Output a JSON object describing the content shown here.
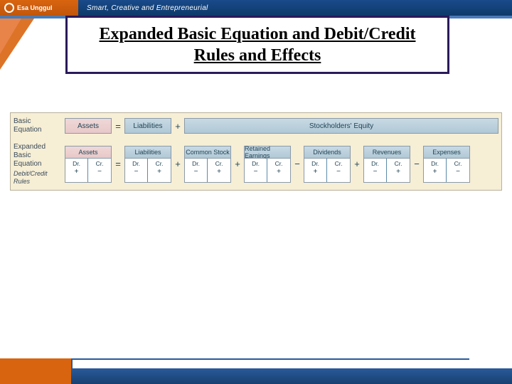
{
  "header": {
    "logo_text": "Esa Unggul",
    "tagline": "Smart, Creative and Entrepreneurial"
  },
  "title": "Expanded Basic Equation and Debit/Credit Rules and Effects",
  "colors": {
    "header_blue": "#0d3a6a",
    "header_orange": "#d9640f",
    "title_border": "#2a1a5a",
    "diagram_bg": "#f6eed5",
    "box_pink": "#e8c8c8",
    "box_blue": "#b0c8d6",
    "text": "#245"
  },
  "basic": {
    "label": "Basic Equation",
    "assets": "Assets",
    "liabilities": "Liabilities",
    "stockholders_equity": "Stockholders' Equity",
    "op1": "=",
    "op2": "+"
  },
  "expanded": {
    "label": "Expanded Basic Equation",
    "sublabel": "Debit/Credit Rules",
    "ops": [
      "=",
      "+",
      "+",
      "−",
      "+",
      "−"
    ],
    "accounts": [
      {
        "name": "Assets",
        "color": "pink",
        "dr_sign": "+",
        "cr_sign": "−"
      },
      {
        "name": "Liabilities",
        "color": "blue",
        "dr_sign": "−",
        "cr_sign": "+"
      },
      {
        "name": "Common Stock",
        "color": "blue",
        "dr_sign": "−",
        "cr_sign": "+"
      },
      {
        "name": "Retained Earnings",
        "color": "blue",
        "dr_sign": "−",
        "cr_sign": "+"
      },
      {
        "name": "Dividends",
        "color": "blue",
        "dr_sign": "+",
        "cr_sign": "−"
      },
      {
        "name": "Revenues",
        "color": "blue",
        "dr_sign": "−",
        "cr_sign": "+"
      },
      {
        "name": "Expenses",
        "color": "blue",
        "dr_sign": "+",
        "cr_sign": "−"
      }
    ],
    "dr_label": "Dr.",
    "cr_label": "Cr."
  }
}
